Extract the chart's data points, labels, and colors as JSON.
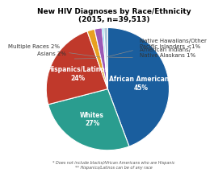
{
  "title": "New HIV Diagnoses by Race/Ethnicity\n(2015, n=39,513)",
  "slices": [
    {
      "label": "African Americans\n45%",
      "value": 45,
      "color": "#1a5e9e",
      "inside": true
    },
    {
      "label": "Whites\n27%",
      "value": 27,
      "color": "#2a9d8f",
      "inside": true
    },
    {
      "label": "Hispanics/Latinos\n24%",
      "value": 24,
      "color": "#c0392b",
      "inside": true
    },
    {
      "label": "Asians 2%",
      "value": 2,
      "color": "#e8a020",
      "inside": false
    },
    {
      "label": "Multiple Races 2%",
      "value": 2,
      "color": "#9b59b6",
      "inside": false
    },
    {
      "label": "Native Hawaiians/Other\nPacific Islanders <1%",
      "value": 0.5,
      "color": "#5bc8e8",
      "inside": false
    },
    {
      "label": "American Indians/\nNative Alaskans 1%",
      "value": 1,
      "color": "#aec6d8",
      "inside": false
    }
  ],
  "footnote1": "* Does not include blacks/African Americans who are Hispanic",
  "footnote2": "** Hispanics/Latinos can be of any race",
  "bg_color": "#ffffff",
  "title_fontsize": 6.5,
  "label_fontsize_inside": 5.5,
  "label_fontsize_outside": 5.0,
  "footnote_fontsize": 3.5
}
